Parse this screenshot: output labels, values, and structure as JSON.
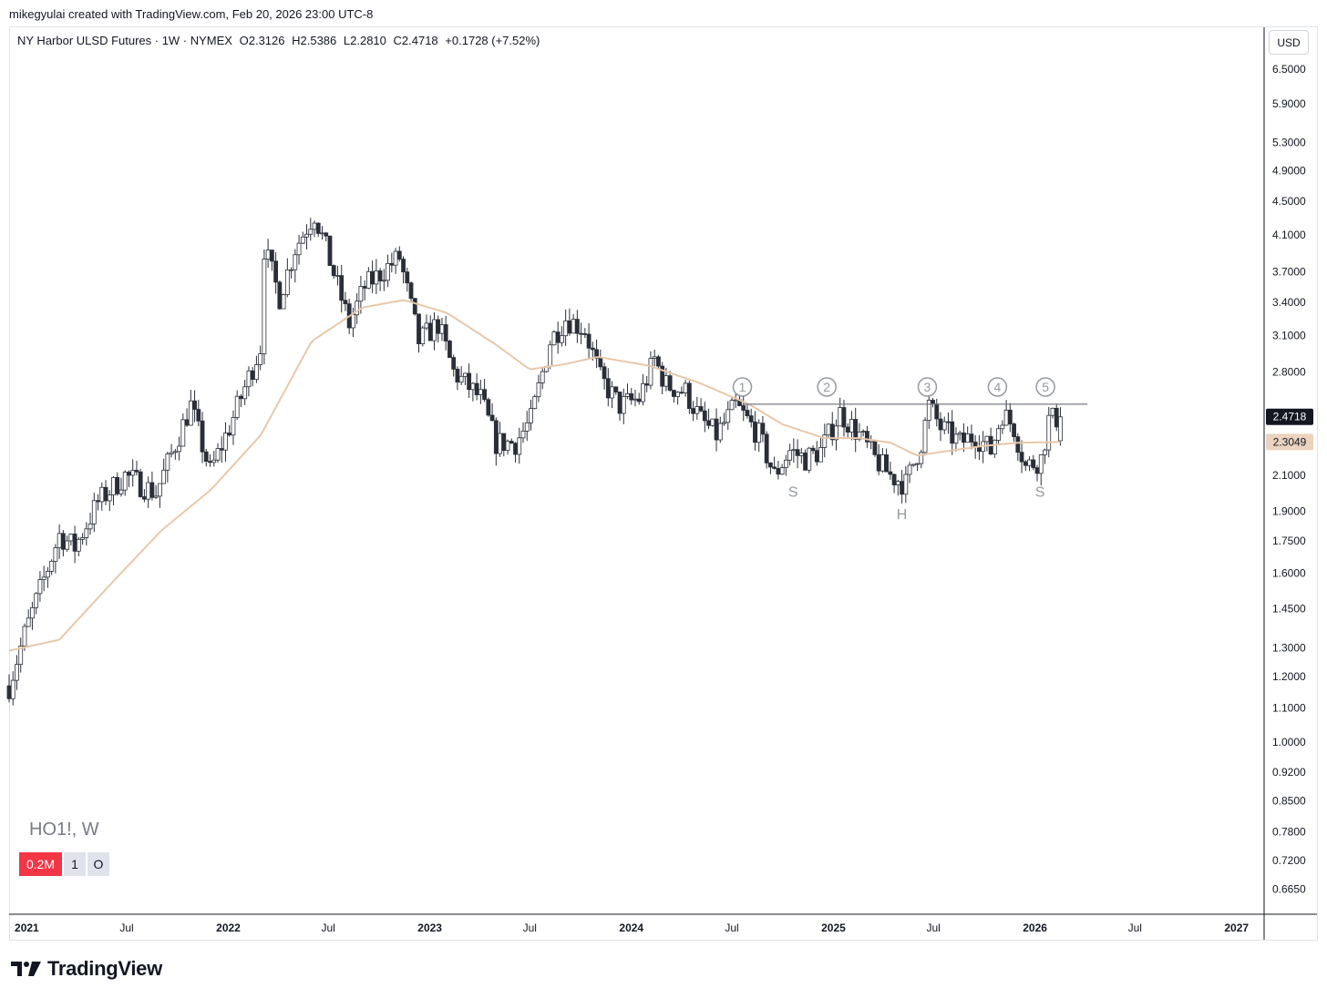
{
  "credit": "mikegyulai created with TradingView.com, Feb 20, 2026 23:00 UTC-8",
  "legend": {
    "instrument": "NY Harbor ULSD Futures · 1W · NYMEX",
    "open": "O2.3126",
    "high": "H2.5386",
    "low": "L2.2810",
    "close": "C2.4718",
    "change": "+0.1728 (+7.52%)"
  },
  "currency": "USD",
  "symbol_label": "HO1!, W",
  "badges": [
    "0.2M",
    "1",
    "O"
  ],
  "brand": "TradingView",
  "colors": {
    "up_fill": "#ffffff",
    "down_fill": "#2a2e39",
    "candle_border": "#2a2e39",
    "ma_line": "#e8c8aa",
    "resistance_line": "#787b86",
    "annotation": "#9598a1",
    "last_price_bg": "#131722",
    "ma_price_bg": "#ebd3bf",
    "volume_badge": "#f23645"
  },
  "chart_data": {
    "type": "candlestick",
    "interval": "weekly",
    "y_scale": "log",
    "ylim": [
      0.62,
      7.3
    ],
    "x_range": [
      "2020-11-30",
      "2027-02-20"
    ],
    "x_ticks": [
      {
        "date": "2021-01-01",
        "label": "2021",
        "bold": true
      },
      {
        "date": "2021-07-01",
        "label": "Jul",
        "bold": false
      },
      {
        "date": "2022-01-01",
        "label": "2022",
        "bold": true
      },
      {
        "date": "2022-07-01",
        "label": "Jul",
        "bold": false
      },
      {
        "date": "2023-01-01",
        "label": "2023",
        "bold": true
      },
      {
        "date": "2023-07-01",
        "label": "Jul",
        "bold": false
      },
      {
        "date": "2024-01-01",
        "label": "2024",
        "bold": true
      },
      {
        "date": "2024-07-01",
        "label": "Jul",
        "bold": false
      },
      {
        "date": "2025-01-01",
        "label": "2025",
        "bold": true
      },
      {
        "date": "2025-07-01",
        "label": "Jul",
        "bold": false
      },
      {
        "date": "2026-01-01",
        "label": "2026",
        "bold": true
      },
      {
        "date": "2026-07-01",
        "label": "Jul",
        "bold": false
      },
      {
        "date": "2027-01-01",
        "label": "2027",
        "bold": true
      }
    ],
    "y_ticks": [
      "6.5000",
      "5.9000",
      "5.3000",
      "4.9000",
      "4.5000",
      "4.1000",
      "3.7000",
      "3.4000",
      "3.1000",
      "2.8000",
      "2.1000",
      "1.9000",
      "1.7500",
      "1.6000",
      "1.4500",
      "1.3000",
      "1.2000",
      "1.1000",
      "1.0000",
      "0.9200",
      "0.8500",
      "0.7800",
      "0.7200",
      "0.6650"
    ],
    "last_price": {
      "value": 2.4718,
      "label": "2.4718"
    },
    "ma_price": {
      "value": 2.3049,
      "label": "2.3049"
    },
    "resistance": {
      "value": 2.56,
      "from": "2024-07-20",
      "to": "2026-04-06"
    },
    "markers": [
      {
        "label": "1",
        "date": "2024-07-20"
      },
      {
        "label": "2",
        "date": "2024-12-20"
      },
      {
        "label": "3",
        "date": "2025-06-20"
      },
      {
        "label": "4",
        "date": "2025-10-25"
      },
      {
        "label": "5",
        "date": "2026-01-20"
      }
    ],
    "pattern_labels": [
      {
        "label": "S",
        "date": "2024-10-20",
        "value": 1.98
      },
      {
        "label": "H",
        "date": "2025-05-05",
        "value": 1.86
      },
      {
        "label": "S",
        "date": "2026-01-10",
        "value": 1.98
      }
    ],
    "price_path": [
      [
        "2020-11-30",
        1.17
      ],
      [
        "2020-12-28",
        1.35
      ],
      [
        "2021-03-01",
        1.78
      ],
      [
        "2021-03-29",
        1.72
      ],
      [
        "2021-05-10",
        1.95
      ],
      [
        "2021-06-28",
        2.1
      ],
      [
        "2021-08-23",
        2.0
      ],
      [
        "2021-10-25",
        2.55
      ],
      [
        "2021-11-29",
        2.12
      ],
      [
        "2022-01-03",
        2.4
      ],
      [
        "2022-02-28",
        3.0
      ],
      [
        "2022-03-07",
        3.95
      ],
      [
        "2022-04-04",
        3.45
      ],
      [
        "2022-05-02",
        3.95
      ],
      [
        "2022-06-06",
        4.35
      ],
      [
        "2022-06-27",
        3.95
      ],
      [
        "2022-08-08",
        3.2
      ],
      [
        "2022-09-05",
        3.55
      ],
      [
        "2022-10-17",
        3.75
      ],
      [
        "2022-11-07",
        3.85
      ],
      [
        "2022-12-12",
        3.05
      ],
      [
        "2023-01-16",
        3.2
      ],
      [
        "2023-02-13",
        2.8
      ],
      [
        "2023-04-03",
        2.6
      ],
      [
        "2023-05-01",
        2.3
      ],
      [
        "2023-06-05",
        2.3
      ],
      [
        "2023-07-03",
        2.45
      ],
      [
        "2023-08-07",
        3.05
      ],
      [
        "2023-09-04",
        3.25
      ],
      [
        "2023-10-09",
        3.15
      ],
      [
        "2023-11-06",
        2.75
      ],
      [
        "2023-12-11",
        2.55
      ],
      [
        "2024-01-15",
        2.6
      ],
      [
        "2024-02-12",
        2.9
      ],
      [
        "2024-03-04",
        2.7
      ],
      [
        "2024-04-08",
        2.65
      ],
      [
        "2024-05-06",
        2.45
      ],
      [
        "2024-06-03",
        2.35
      ],
      [
        "2024-07-08",
        2.55
      ],
      [
        "2024-08-19",
        2.35
      ],
      [
        "2024-09-16",
        2.1
      ],
      [
        "2024-10-14",
        2.25
      ],
      [
        "2024-11-11",
        2.2
      ],
      [
        "2024-12-09",
        2.25
      ],
      [
        "2025-01-13",
        2.5
      ],
      [
        "2025-02-17",
        2.35
      ],
      [
        "2025-03-17",
        2.2
      ],
      [
        "2025-04-14",
        2.1
      ],
      [
        "2025-05-12",
        2.05
      ],
      [
        "2025-06-09",
        2.3
      ],
      [
        "2025-06-23",
        2.55
      ],
      [
        "2025-07-14",
        2.4
      ],
      [
        "2025-08-18",
        2.3
      ],
      [
        "2025-09-15",
        2.35
      ],
      [
        "2025-10-13",
        2.25
      ],
      [
        "2025-11-03",
        2.5
      ],
      [
        "2025-11-24",
        2.4
      ],
      [
        "2025-12-15",
        2.15
      ],
      [
        "2026-01-12",
        2.2
      ],
      [
        "2026-01-26",
        2.45
      ],
      [
        "2026-02-20",
        2.47
      ]
    ],
    "ma_path": [
      [
        "2020-11-30",
        1.29
      ],
      [
        "2021-03-01",
        1.33
      ],
      [
        "2021-06-01",
        1.55
      ],
      [
        "2021-09-01",
        1.8
      ],
      [
        "2021-12-01",
        2.02
      ],
      [
        "2022-03-01",
        2.35
      ],
      [
        "2022-06-01",
        3.05
      ],
      [
        "2022-09-01",
        3.35
      ],
      [
        "2022-11-15",
        3.42
      ],
      [
        "2023-02-01",
        3.3
      ],
      [
        "2023-05-01",
        3.02
      ],
      [
        "2023-07-01",
        2.82
      ],
      [
        "2023-09-01",
        2.86
      ],
      [
        "2023-11-01",
        2.92
      ],
      [
        "2024-02-01",
        2.85
      ],
      [
        "2024-05-01",
        2.72
      ],
      [
        "2024-08-01",
        2.56
      ],
      [
        "2024-10-01",
        2.42
      ],
      [
        "2024-12-15",
        2.33
      ],
      [
        "2025-02-15",
        2.33
      ],
      [
        "2025-04-15",
        2.3
      ],
      [
        "2025-06-01",
        2.22
      ],
      [
        "2025-08-01",
        2.25
      ],
      [
        "2025-10-01",
        2.28
      ],
      [
        "2025-12-01",
        2.3
      ],
      [
        "2026-02-20",
        2.305
      ]
    ]
  }
}
